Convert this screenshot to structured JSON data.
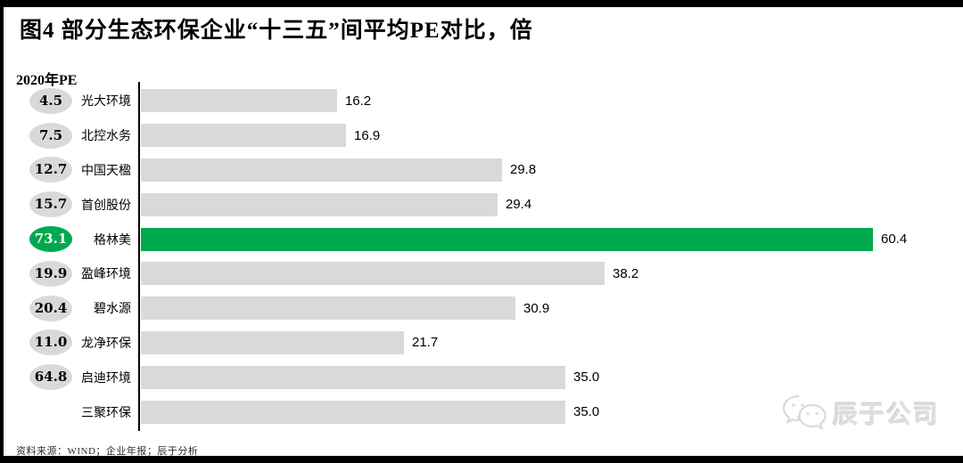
{
  "header": {
    "title": "图4  部分生态环保企业“十三五”间平均PE对比，倍"
  },
  "chart_data": {
    "type": "bar",
    "orientation": "horizontal",
    "title": "部分生态环保企业“十三五”间平均PE对比，倍",
    "unit": "倍",
    "badge_column_label": "2020年PE",
    "categories": [
      "光大环境",
      "北控水务",
      "中国天楹",
      "首创股份",
      "格林美",
      "盈峰环境",
      "碧水源",
      "龙净环保",
      "启迪环境",
      "三聚环保"
    ],
    "values": [
      16.2,
      16.9,
      29.8,
      29.4,
      60.4,
      38.2,
      30.9,
      21.7,
      35.0,
      35.0
    ],
    "badges_2020_pe": [
      "4.5",
      "7.5",
      "12.7",
      "15.7",
      "73.1",
      "19.9",
      "20.4",
      "11.0",
      "64.8",
      null
    ],
    "highlight_index": 4,
    "highlight_category": "格林美",
    "xlim": [
      0,
      61
    ],
    "grid": false,
    "legend": false,
    "colors": {
      "bar": "#D9D9D9",
      "highlight": "#00A94F",
      "badge": "#D9D9D9",
      "badge_highlight": "#00A94F"
    }
  },
  "footer": {
    "source": "资料来源：WIND；企业年报；辰于分析",
    "watermark": "辰于公司"
  }
}
